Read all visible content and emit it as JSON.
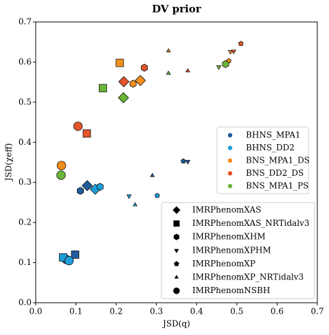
{
  "chart_data": {
    "type": "scatter",
    "title": "DV prior",
    "x_label": "JSD(q)",
    "y_label": "JSD(χeff)",
    "xlim": [
      0,
      0.7
    ],
    "ylim": [
      0,
      0.7
    ],
    "xticks": [
      {
        "value": 0,
        "label": "0.0"
      },
      {
        "value": 0.1,
        "label": "0.1"
      },
      {
        "value": 0.2,
        "label": "0.2"
      },
      {
        "value": 0.3,
        "label": "0.3"
      },
      {
        "value": 0.4,
        "label": "0.4"
      },
      {
        "value": 0.5,
        "label": "0.5"
      },
      {
        "value": 0.6,
        "label": "0.6"
      },
      {
        "value": 0.7,
        "label": "0.7"
      }
    ],
    "yticks": [
      {
        "value": 0,
        "label": "0.0"
      },
      {
        "value": 0.1,
        "label": "0.1"
      },
      {
        "value": 0.2,
        "label": "0.2"
      },
      {
        "value": 0.3,
        "label": "0.3"
      },
      {
        "value": 0.4,
        "label": "0.4"
      },
      {
        "value": 0.5,
        "label": "0.5"
      },
      {
        "value": 0.6,
        "label": "0.6"
      },
      {
        "value": 0.7,
        "label": "0.7"
      }
    ],
    "waveforms": [
      {
        "name": "IMRPhenomXAS",
        "marker": "diamond"
      },
      {
        "name": "IMRPhenomXAS_NRTidalv3",
        "marker": "square"
      },
      {
        "name": "IMRPhenomXHM",
        "marker": "hexagon"
      },
      {
        "name": "IMRPhenomXPHM",
        "marker": "triangle-down"
      },
      {
        "name": "IMRPhenomXP",
        "marker": "pentagon"
      },
      {
        "name": "IMRPhenomXP_NRTidalv3",
        "marker": "triangle-up"
      },
      {
        "name": "IMRPhenomNSBH",
        "marker": "circle"
      }
    ],
    "series": [
      {
        "name": "BHNS_MPA1",
        "color": "#1f5c9e",
        "x": [
          0.128,
          0.111,
          0.378,
          0.367,
          0.29,
          0.098,
          0.076
        ],
        "y": [
          0.292,
          0.279,
          0.352,
          0.353,
          0.317,
          0.12,
          0.108
        ],
        "markers": [
          "IMRPhenomXAS",
          "IMRPhenomXHM",
          "IMRPhenomXPHM",
          "IMRPhenomXP",
          "IMRPhenomXP_NRTidalv3",
          "IMRPhenomXAS_NRTidalv3",
          "IMRPhenomNSBH"
        ]
      },
      {
        "name": "BHNS_DD2",
        "color": "#1e9fd9",
        "x": [
          0.148,
          0.16,
          0.232,
          0.302,
          0.247,
          0.068,
          0.083
        ],
        "y": [
          0.283,
          0.289,
          0.266,
          0.267,
          0.244,
          0.113,
          0.105
        ],
        "markers": [
          "IMRPhenomXAS",
          "IMRPhenomXHM",
          "IMRPhenomXPHM",
          "IMRPhenomXP",
          "IMRPhenomXP_NRTidalv3",
          "IMRPhenomXAS_NRTidalv3",
          "IMRPhenomNSBH"
        ]
      },
      {
        "name": "BNS_MPA1_DS",
        "color": "#f28e1c",
        "x": [
          0.26,
          0.242,
          0.484,
          0.48,
          0.33,
          0.209,
          0.064
        ],
        "y": [
          0.554,
          0.546,
          0.626,
          0.603,
          0.628,
          0.598,
          0.342
        ],
        "markers": [
          "IMRPhenomXAS",
          "IMRPhenomXHM",
          "IMRPhenomXPHM",
          "IMRPhenomXP",
          "IMRPhenomXP_NRTidalv3",
          "IMRPhenomXAS_NRTidalv3",
          "IMRPhenomNSBH"
        ]
      },
      {
        "name": "BNS_DD2_DS",
        "color": "#e4552b",
        "x": [
          0.219,
          0.27,
          0.492,
          0.51,
          0.378,
          0.127,
          0.105
        ],
        "y": [
          0.551,
          0.586,
          0.627,
          0.646,
          0.578,
          0.422,
          0.44
        ],
        "markers": [
          "IMRPhenomXAS",
          "IMRPhenomXHM",
          "IMRPhenomXPHM",
          "IMRPhenomXP",
          "IMRPhenomXP_NRTidalv3",
          "IMRPhenomXAS_NRTidalv3",
          "IMRPhenomNSBH"
        ]
      },
      {
        "name": "BNS_MPA1_PS",
        "color": "#6ab536",
        "x": [
          0.218,
          0.472,
          0.455,
          0.33,
          0.167,
          0.063
        ],
        "y": [
          0.511,
          0.595,
          0.588,
          0.572,
          0.535,
          0.318
        ],
        "markers": [
          "IMRPhenomXAS",
          "IMRPhenomXHM",
          "IMRPhenomXPHM",
          "IMRPhenomXP_NRTidalv3",
          "IMRPhenomXAS_NRTidalv3",
          "IMRPhenomNSBH"
        ]
      }
    ]
  }
}
